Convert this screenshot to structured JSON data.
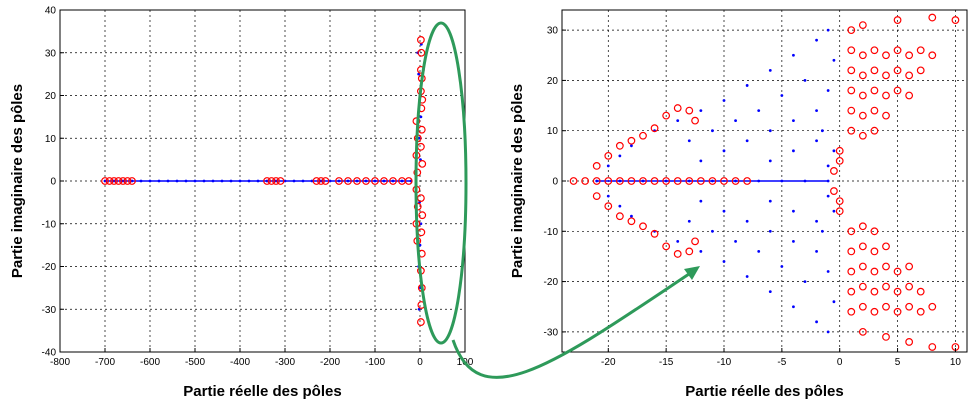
{
  "chart_data": [
    {
      "type": "scatter",
      "title": "",
      "xlabel": "Partie réelle des pôles",
      "ylabel": "Partie imaginaire des pôles",
      "xlim": [
        -800,
        100
      ],
      "ylim": [
        -40,
        40
      ],
      "xticks": [
        -800,
        -700,
        -600,
        -500,
        -400,
        -300,
        -200,
        -100,
        0,
        100
      ],
      "yticks": [
        -40,
        -30,
        -20,
        -10,
        0,
        10,
        20,
        30,
        40
      ],
      "grid": true,
      "series": [
        {
          "marker": "dot",
          "color": "#0000ff",
          "points": [
            [
              -700,
              0
            ],
            [
              -680,
              0
            ],
            [
              -660,
              0
            ],
            [
              -640,
              0
            ],
            [
              -620,
              0
            ],
            [
              -600,
              0
            ],
            [
              -580,
              0
            ],
            [
              -560,
              0
            ],
            [
              -540,
              0
            ],
            [
              -520,
              0
            ],
            [
              -500,
              0
            ],
            [
              -480,
              0
            ],
            [
              -460,
              0
            ],
            [
              -440,
              0
            ],
            [
              -420,
              0
            ],
            [
              -400,
              0
            ],
            [
              -380,
              0
            ],
            [
              -360,
              0
            ],
            [
              -340,
              0
            ],
            [
              -320,
              0
            ],
            [
              -300,
              0
            ],
            [
              -280,
              0
            ],
            [
              -260,
              0
            ],
            [
              -240,
              0
            ],
            [
              -220,
              0
            ],
            [
              -200,
              0
            ],
            [
              -180,
              0
            ],
            [
              -160,
              0
            ],
            [
              -140,
              0
            ],
            [
              -120,
              0
            ],
            [
              -100,
              0
            ],
            [
              -80,
              0
            ],
            [
              -60,
              0
            ],
            [
              -40,
              0
            ],
            [
              -20,
              0
            ],
            [
              -5,
              30
            ],
            [
              -3,
              25
            ],
            [
              0,
              20
            ],
            [
              2,
              15
            ],
            [
              -2,
              10
            ],
            [
              1,
              5
            ],
            [
              -1,
              -5
            ],
            [
              2,
              -10
            ],
            [
              0,
              -15
            ],
            [
              -3,
              -20
            ],
            [
              1,
              -25
            ],
            [
              -2,
              -30
            ],
            [
              3,
              32
            ]
          ]
        },
        {
          "marker": "circle",
          "color": "#ff0000",
          "points": [
            [
              -700,
              0
            ],
            [
              -690,
              0
            ],
            [
              -680,
              0
            ],
            [
              -670,
              0
            ],
            [
              -660,
              0
            ],
            [
              -650,
              0
            ],
            [
              -640,
              0
            ],
            [
              -340,
              0
            ],
            [
              -330,
              0
            ],
            [
              -320,
              0
            ],
            [
              -310,
              0
            ],
            [
              -230,
              0
            ],
            [
              -220,
              0
            ],
            [
              -210,
              0
            ],
            [
              -180,
              0
            ],
            [
              -160,
              0
            ],
            [
              -140,
              0
            ],
            [
              -120,
              0
            ],
            [
              -100,
              0
            ],
            [
              -80,
              0
            ],
            [
              -60,
              0
            ],
            [
              -40,
              0
            ],
            [
              -25,
              0
            ],
            [
              -8,
              14
            ],
            [
              -5,
              10
            ],
            [
              -8,
              6
            ],
            [
              -6,
              2
            ],
            [
              -8,
              -2
            ],
            [
              -5,
              -6
            ],
            [
              -8,
              -10
            ],
            [
              -6,
              -14
            ],
            [
              2,
              33
            ],
            [
              3,
              30
            ],
            [
              2,
              26
            ],
            [
              4,
              24
            ],
            [
              2,
              21
            ],
            [
              5,
              19
            ],
            [
              3,
              17
            ],
            [
              4,
              12
            ],
            [
              2,
              8
            ],
            [
              5,
              4
            ],
            [
              2,
              -4
            ],
            [
              5,
              -8
            ],
            [
              3,
              -12
            ],
            [
              4,
              -17
            ],
            [
              2,
              -21
            ],
            [
              4,
              -25
            ],
            [
              3,
              -29
            ],
            [
              2,
              -33
            ]
          ]
        }
      ]
    },
    {
      "type": "scatter",
      "title": "",
      "xlabel": "Partie réelle des pôles",
      "ylabel": "Partie imaginaire des pôles",
      "xlim": [
        -24,
        11
      ],
      "ylim": [
        -34,
        34
      ],
      "xticks": [
        -20,
        -15,
        -10,
        -5,
        0,
        5,
        10
      ],
      "yticks": [
        -30,
        -20,
        -10,
        0,
        10,
        20,
        30
      ],
      "grid": true,
      "series": [
        {
          "marker": "dot",
          "color": "#0000ff",
          "points": [
            [
              -21,
              0
            ],
            [
              -19,
              0
            ],
            [
              -17,
              0
            ],
            [
              -15,
              0
            ],
            [
              -13,
              0
            ],
            [
              -11,
              0
            ],
            [
              -9,
              0
            ],
            [
              -7,
              0
            ],
            [
              -5,
              0
            ],
            [
              -3,
              0
            ],
            [
              -1,
              0
            ],
            [
              -20,
              3
            ],
            [
              -20,
              -3
            ],
            [
              -19,
              5
            ],
            [
              -19,
              -5
            ],
            [
              -18,
              7
            ],
            [
              -18,
              -7
            ],
            [
              -16,
              10
            ],
            [
              -16,
              -10
            ],
            [
              -14,
              12
            ],
            [
              -14,
              -12
            ],
            [
              -12,
              14
            ],
            [
              -12,
              -14
            ],
            [
              -10,
              16
            ],
            [
              -10,
              -16
            ],
            [
              -8,
              19
            ],
            [
              -8,
              -19
            ],
            [
              -6,
              22
            ],
            [
              -6,
              -22
            ],
            [
              -4,
              25
            ],
            [
              -4,
              -25
            ],
            [
              -2,
              28
            ],
            [
              -2,
              -28
            ],
            [
              -1,
              30
            ],
            [
              -1,
              -30
            ],
            [
              -13,
              8
            ],
            [
              -13,
              -8
            ],
            [
              -11,
              10
            ],
            [
              -11,
              -10
            ],
            [
              -9,
              12
            ],
            [
              -9,
              -12
            ],
            [
              -7,
              14
            ],
            [
              -7,
              -14
            ],
            [
              -5,
              17
            ],
            [
              -5,
              -17
            ],
            [
              -3,
              20
            ],
            [
              -3,
              -20
            ],
            [
              -12,
              4
            ],
            [
              -12,
              -4
            ],
            [
              -10,
              6
            ],
            [
              -10,
              -6
            ],
            [
              -8,
              8
            ],
            [
              -8,
              -8
            ],
            [
              -6,
              10
            ],
            [
              -6,
              -10
            ],
            [
              -4,
              12
            ],
            [
              -4,
              -12
            ],
            [
              -2,
              14
            ],
            [
              -2,
              -14
            ],
            [
              -6,
              4
            ],
            [
              -6,
              -4
            ],
            [
              -4,
              6
            ],
            [
              -4,
              -6
            ],
            [
              -2,
              8
            ],
            [
              -2,
              -8
            ],
            [
              -1,
              3
            ],
            [
              -1,
              -3
            ],
            [
              -0.5,
              6
            ],
            [
              -0.5,
              -6
            ],
            [
              -1.5,
              10
            ],
            [
              -1.5,
              -10
            ],
            [
              -1,
              18
            ],
            [
              -1,
              -18
            ],
            [
              -0.5,
              24
            ],
            [
              -0.5,
              -24
            ]
          ]
        },
        {
          "marker": "circle",
          "color": "#ff0000",
          "points": [
            [
              -23,
              0
            ],
            [
              -22,
              0
            ],
            [
              -21,
              0
            ],
            [
              -20,
              0
            ],
            [
              -19,
              0
            ],
            [
              -18,
              0
            ],
            [
              -17,
              0
            ],
            [
              -16,
              0
            ],
            [
              -15,
              0
            ],
            [
              -14,
              0
            ],
            [
              -13,
              0
            ],
            [
              -12,
              0
            ],
            [
              -11,
              0
            ],
            [
              -10,
              0
            ],
            [
              -9,
              0
            ],
            [
              -8,
              0
            ],
            [
              -21,
              3
            ],
            [
              -21,
              -3
            ],
            [
              -20,
              5
            ],
            [
              -20,
              -5
            ],
            [
              -19,
              7
            ],
            [
              -19,
              -7
            ],
            [
              -18,
              8
            ],
            [
              -18,
              -8
            ],
            [
              -17,
              9
            ],
            [
              -17,
              -9
            ],
            [
              -16,
              10.5
            ],
            [
              -16,
              -10.5
            ],
            [
              -15,
              13
            ],
            [
              -15,
              -13
            ],
            [
              -14,
              14.5
            ],
            [
              -14,
              -14.5
            ],
            [
              -13,
              14
            ],
            [
              -13,
              -14
            ],
            [
              -12.5,
              12
            ],
            [
              -12.5,
              -12
            ],
            [
              0,
              6
            ],
            [
              0,
              4
            ],
            [
              0,
              -4
            ],
            [
              0,
              -6
            ],
            [
              -0.5,
              2
            ],
            [
              -0.5,
              -2
            ],
            [
              1,
              30
            ],
            [
              2,
              31
            ],
            [
              5,
              32
            ],
            [
              8,
              32.5
            ],
            [
              10,
              32
            ],
            [
              1,
              26
            ],
            [
              2,
              25
            ],
            [
              3,
              26
            ],
            [
              4,
              25
            ],
            [
              5,
              26
            ],
            [
              6,
              25
            ],
            [
              7,
              26
            ],
            [
              8,
              25
            ],
            [
              1,
              22
            ],
            [
              2,
              21
            ],
            [
              3,
              22
            ],
            [
              4,
              21
            ],
            [
              5,
              22
            ],
            [
              6,
              21
            ],
            [
              7,
              22
            ],
            [
              1,
              18
            ],
            [
              2,
              17
            ],
            [
              3,
              18
            ],
            [
              4,
              17
            ],
            [
              5,
              18
            ],
            [
              6,
              17
            ],
            [
              1,
              14
            ],
            [
              2,
              13
            ],
            [
              3,
              14
            ],
            [
              4,
              13
            ],
            [
              1,
              10
            ],
            [
              2,
              9
            ],
            [
              3,
              10
            ],
            [
              1,
              -10
            ],
            [
              2,
              -9
            ],
            [
              3,
              -10
            ],
            [
              1,
              -14
            ],
            [
              2,
              -13
            ],
            [
              3,
              -14
            ],
            [
              4,
              -13
            ],
            [
              1,
              -18
            ],
            [
              2,
              -17
            ],
            [
              3,
              -18
            ],
            [
              4,
              -17
            ],
            [
              5,
              -18
            ],
            [
              6,
              -17
            ],
            [
              1,
              -22
            ],
            [
              2,
              -21
            ],
            [
              3,
              -22
            ],
            [
              4,
              -21
            ],
            [
              5,
              -22
            ],
            [
              6,
              -21
            ],
            [
              7,
              -22
            ],
            [
              1,
              -26
            ],
            [
              2,
              -25
            ],
            [
              3,
              -26
            ],
            [
              4,
              -25
            ],
            [
              5,
              -26
            ],
            [
              6,
              -25
            ],
            [
              7,
              -26
            ],
            [
              8,
              -25
            ],
            [
              2,
              -30
            ],
            [
              4,
              -31
            ],
            [
              6,
              -32
            ],
            [
              8,
              -33
            ],
            [
              10,
              -33
            ]
          ]
        }
      ]
    }
  ]
}
